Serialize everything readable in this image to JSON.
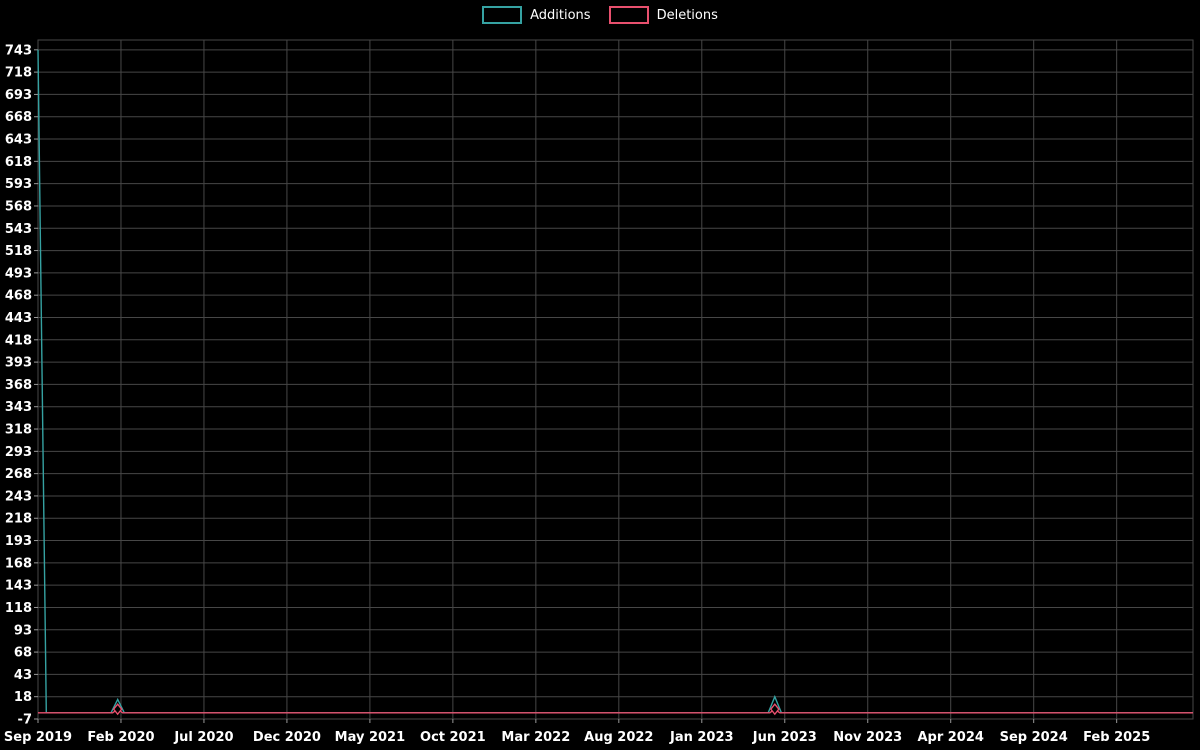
{
  "legend": {
    "items": [
      {
        "label": "Additions",
        "color": "#35a2a2"
      },
      {
        "label": "Deletions",
        "color": "#e8506e"
      }
    ]
  },
  "chart_data": {
    "type": "line",
    "title": "",
    "xlabel": "",
    "ylabel": "",
    "background": "#000000",
    "grid": true,
    "grid_color": "#474747",
    "tick_color": "#999999",
    "text_color": "#ffffff",
    "x_unit": "months since Sep 2019",
    "x_range": [
      0,
      69.6
    ],
    "y_range": [
      -7,
      754
    ],
    "x_tick_positions": [
      0,
      5,
      10,
      15,
      20,
      25,
      30,
      35,
      40,
      45,
      50,
      55,
      60,
      65
    ],
    "x_tick_labels": [
      "Sep 2019",
      "Feb 2020",
      "Jul 2020",
      "Dec 2020",
      "May 2021",
      "Oct 2021",
      "Mar 2022",
      "Aug 2022",
      "Jan 2023",
      "Jun 2023",
      "Nov 2023",
      "Apr 2024",
      "Sep 2024",
      "Feb 2025"
    ],
    "y_ticks": [
      -7,
      18,
      43,
      68,
      93,
      118,
      143,
      168,
      193,
      218,
      243,
      268,
      293,
      318,
      343,
      368,
      393,
      418,
      443,
      468,
      493,
      518,
      543,
      568,
      593,
      618,
      643,
      668,
      693,
      718,
      743
    ],
    "series": [
      {
        "name": "Additions",
        "color": "#35a2a2",
        "marker": "none",
        "points": [
          [
            0,
            743
          ],
          [
            0.5,
            0
          ],
          [
            4.4,
            0
          ],
          [
            4.8,
            15
          ],
          [
            5.2,
            0
          ],
          [
            44.0,
            0
          ],
          [
            44.4,
            18
          ],
          [
            44.8,
            0
          ],
          [
            69.6,
            0
          ]
        ]
      },
      {
        "name": "Deletions",
        "color": "#e8506e",
        "marker": "diamond",
        "points": [
          [
            0,
            0
          ],
          [
            4.5,
            0
          ],
          [
            4.8,
            4
          ],
          [
            5.1,
            0
          ],
          [
            44.1,
            0
          ],
          [
            44.4,
            4
          ],
          [
            44.7,
            0
          ],
          [
            69.6,
            0
          ]
        ],
        "marker_points": [
          [
            4.8,
            4
          ],
          [
            44.4,
            4
          ]
        ]
      }
    ]
  }
}
